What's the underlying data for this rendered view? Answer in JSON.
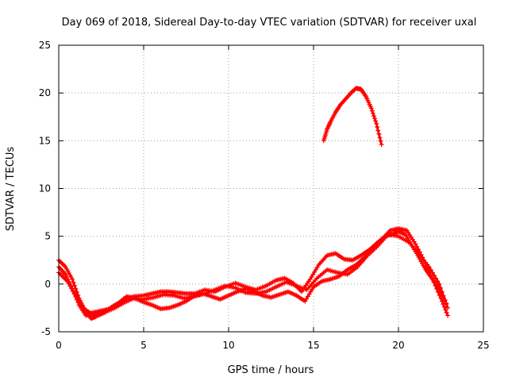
{
  "chart_data": {
    "type": "scatter",
    "title": "Day 069 of 2018, Sidereal Day-to-day VTEC variation (SDTVAR) for receiver uxal",
    "xlabel": "GPS time / hours",
    "ylabel": "SDTVAR / TECUs",
    "xlim": [
      0,
      25
    ],
    "ylim": [
      -5,
      25
    ],
    "xticks": [
      0,
      5,
      10,
      15,
      20,
      25
    ],
    "yticks": [
      -5,
      0,
      5,
      10,
      15,
      20,
      25
    ],
    "grid": true,
    "marker": "+",
    "color": "#ff0000",
    "series": [
      {
        "name": "track-a",
        "points": [
          [
            0,
            2.5
          ],
          [
            0.4,
            1.8
          ],
          [
            0.8,
            0.5
          ],
          [
            1.2,
            -1.5
          ],
          [
            1.6,
            -3.0
          ],
          [
            1.9,
            -3.6
          ],
          [
            2.2,
            -3.4
          ],
          [
            2.7,
            -3.0
          ],
          [
            3.2,
            -2.3
          ],
          [
            3.8,
            -1.8
          ],
          [
            4.4,
            -1.3
          ],
          [
            5.0,
            -1.2
          ],
          [
            5.5,
            -1.0
          ],
          [
            6.0,
            -0.8
          ],
          [
            6.5,
            -0.8
          ],
          [
            7.0,
            -0.9
          ],
          [
            7.5,
            -1.0
          ],
          [
            8.0,
            -1.0
          ],
          [
            8.6,
            -0.6
          ],
          [
            9.2,
            -0.8
          ],
          [
            9.8,
            -0.3
          ],
          [
            10.4,
            0.1
          ],
          [
            11.0,
            -0.3
          ],
          [
            11.6,
            -0.6
          ],
          [
            12.2,
            -0.2
          ],
          [
            12.8,
            0.4
          ],
          [
            13.3,
            0.6
          ],
          [
            13.8,
            0.1
          ],
          [
            14.3,
            -0.8
          ],
          [
            14.8,
            0.5
          ],
          [
            15.3,
            2.0
          ],
          [
            15.8,
            3.0
          ],
          [
            16.3,
            3.2
          ],
          [
            16.8,
            2.6
          ],
          [
            17.3,
            2.5
          ],
          [
            17.8,
            3.0
          ],
          [
            18.3,
            3.6
          ],
          [
            18.8,
            4.4
          ],
          [
            19.2,
            5.0
          ],
          [
            19.6,
            5.2
          ],
          [
            20.0,
            5.5
          ],
          [
            20.4,
            5.2
          ],
          [
            20.8,
            4.0
          ],
          [
            21.2,
            2.8
          ],
          [
            21.6,
            1.5
          ],
          [
            22.0,
            0.5
          ],
          [
            22.4,
            -0.5
          ],
          [
            22.8,
            -2.0
          ]
        ]
      },
      {
        "name": "track-b",
        "points": [
          [
            0,
            1.8
          ],
          [
            0.4,
            1.0
          ],
          [
            0.8,
            -0.5
          ],
          [
            1.2,
            -2.2
          ],
          [
            1.6,
            -3.3
          ],
          [
            2.0,
            -3.0
          ],
          [
            2.5,
            -2.8
          ],
          [
            3.0,
            -2.6
          ],
          [
            3.5,
            -2.0
          ],
          [
            4.0,
            -1.3
          ],
          [
            4.5,
            -1.5
          ],
          [
            5.0,
            -1.9
          ],
          [
            5.5,
            -2.2
          ],
          [
            6.0,
            -2.6
          ],
          [
            6.5,
            -2.5
          ],
          [
            7.0,
            -2.2
          ],
          [
            7.5,
            -1.8
          ],
          [
            8.0,
            -1.2
          ],
          [
            8.5,
            -1.0
          ],
          [
            9.0,
            -1.3
          ],
          [
            9.5,
            -1.6
          ],
          [
            10.0,
            -1.2
          ],
          [
            10.5,
            -0.8
          ],
          [
            11.0,
            -0.5
          ],
          [
            11.5,
            -0.8
          ],
          [
            12.0,
            -1.2
          ],
          [
            12.5,
            -1.4
          ],
          [
            13.0,
            -1.1
          ],
          [
            13.5,
            -0.8
          ],
          [
            14.0,
            -1.2
          ],
          [
            14.5,
            -1.8
          ],
          [
            15.0,
            -0.3
          ],
          [
            15.5,
            0.3
          ],
          [
            16.0,
            0.5
          ],
          [
            16.5,
            0.8
          ],
          [
            17.0,
            1.5
          ],
          [
            17.5,
            2.0
          ],
          [
            18.0,
            2.8
          ],
          [
            18.5,
            3.8
          ],
          [
            19.0,
            4.6
          ],
          [
            19.5,
            5.6
          ],
          [
            20.0,
            5.8
          ],
          [
            20.5,
            5.6
          ],
          [
            21.0,
            4.2
          ],
          [
            21.5,
            2.5
          ],
          [
            22.0,
            0.5
          ],
          [
            22.5,
            -1.5
          ],
          [
            22.9,
            -3.3
          ]
        ]
      },
      {
        "name": "track-c",
        "points": [
          [
            0,
            1.2
          ],
          [
            0.5,
            0.3
          ],
          [
            1.0,
            -1.2
          ],
          [
            1.5,
            -2.6
          ],
          [
            2.0,
            -3.2
          ],
          [
            2.6,
            -3.0
          ],
          [
            3.2,
            -2.6
          ],
          [
            3.8,
            -2.0
          ],
          [
            4.4,
            -1.5
          ],
          [
            5.0,
            -1.6
          ],
          [
            5.6,
            -1.4
          ],
          [
            6.2,
            -1.1
          ],
          [
            6.8,
            -1.2
          ],
          [
            7.4,
            -1.5
          ],
          [
            8.0,
            -1.3
          ],
          [
            8.6,
            -1.0
          ],
          [
            9.2,
            -0.6
          ],
          [
            9.8,
            -0.2
          ],
          [
            10.4,
            -0.4
          ],
          [
            11.0,
            -0.9
          ],
          [
            11.6,
            -1.0
          ],
          [
            12.2,
            -0.8
          ],
          [
            12.8,
            -0.3
          ],
          [
            13.4,
            0.2
          ],
          [
            14.0,
            -0.2
          ],
          [
            14.6,
            -0.6
          ],
          [
            15.2,
            0.6
          ],
          [
            15.8,
            1.5
          ],
          [
            16.4,
            1.2
          ],
          [
            17.0,
            1.0
          ],
          [
            17.6,
            1.8
          ],
          [
            18.2,
            3.0
          ],
          [
            18.8,
            4.0
          ],
          [
            19.4,
            5.2
          ],
          [
            20.0,
            5.0
          ],
          [
            20.6,
            4.4
          ],
          [
            21.2,
            3.2
          ],
          [
            21.8,
            1.8
          ],
          [
            22.4,
            0.0
          ],
          [
            22.9,
            -2.5
          ]
        ]
      },
      {
        "name": "track-d",
        "points": [
          [
            15.6,
            15.0
          ],
          [
            15.8,
            16.2
          ],
          [
            16.0,
            17.0
          ],
          [
            16.3,
            18.0
          ],
          [
            16.6,
            18.8
          ],
          [
            16.9,
            19.4
          ],
          [
            17.2,
            20.0
          ],
          [
            17.5,
            20.5
          ],
          [
            17.8,
            20.4
          ],
          [
            18.1,
            19.6
          ],
          [
            18.4,
            18.4
          ],
          [
            18.7,
            16.8
          ],
          [
            19.0,
            14.6
          ]
        ]
      }
    ]
  }
}
